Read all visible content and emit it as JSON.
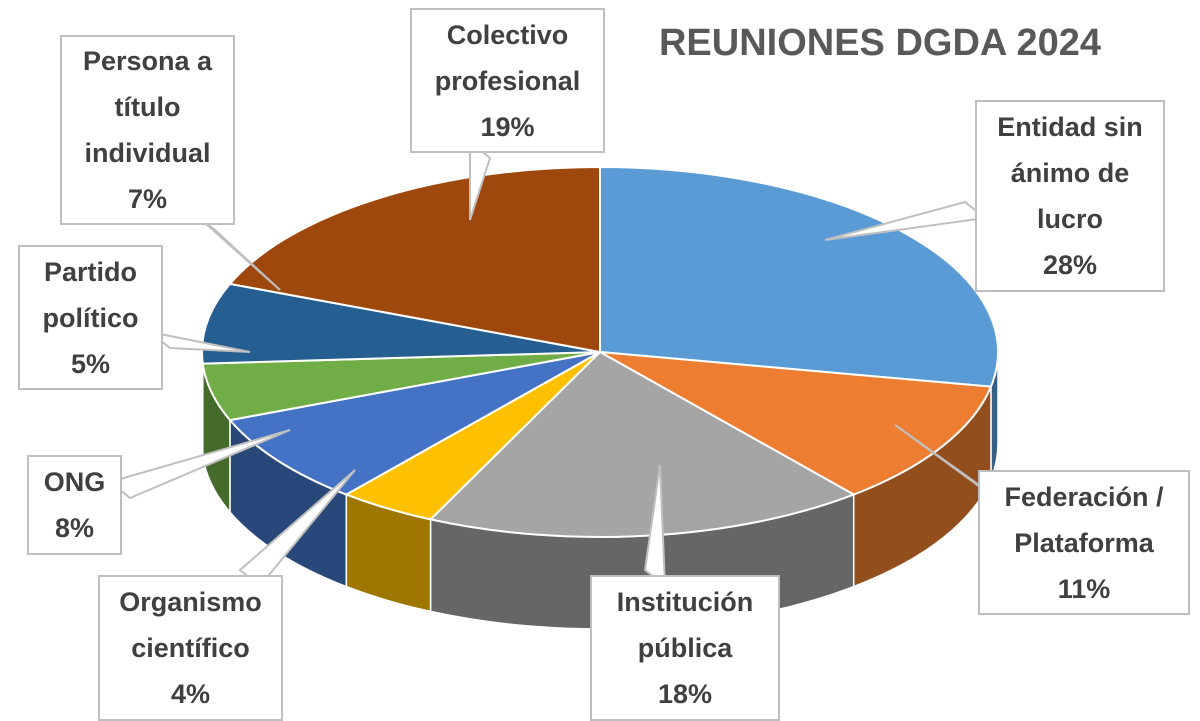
{
  "chart_data": {
    "type": "pie3d",
    "title": "REUNIONES DGDA 2024",
    "categories": [
      "Entidad sin ánimo de lucro",
      "Federación / Plataforma",
      "Institución pública",
      "Organismo científico",
      "ONG",
      "Partido político",
      "Persona a título individual",
      "Colectivo profesional"
    ],
    "values": [
      28,
      11,
      18,
      4,
      8,
      5,
      7,
      19
    ],
    "value_labels": [
      "28%",
      "11%",
      "18%",
      "4%",
      "8%",
      "5%",
      "7%",
      "19%"
    ],
    "colors": [
      "#5b9bd5",
      "#ed7d31",
      "#a5a5a5",
      "#ffc000",
      "#4472c4",
      "#70ad47",
      "#255e91",
      "#9e480e"
    ]
  }
}
